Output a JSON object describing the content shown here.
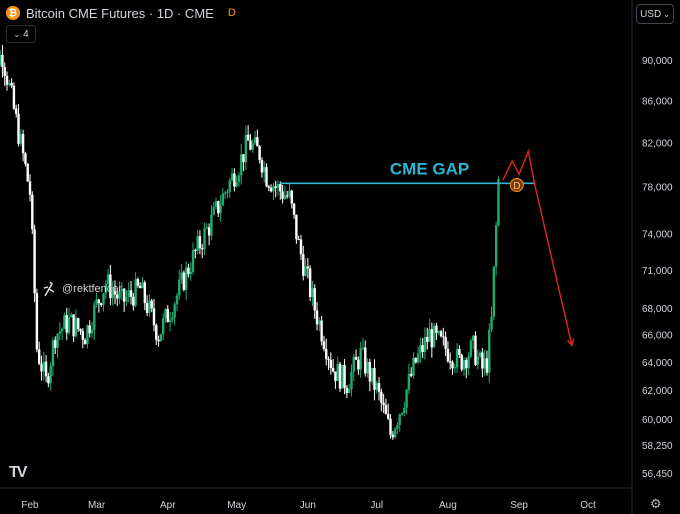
{
  "header": {
    "title": "Bitcoin CME Futures · 1D · CME",
    "coin_glyph": "₿",
    "badge": "D",
    "indicator_count": "4",
    "currency": "USD"
  },
  "watermark": "@rektfencer",
  "annotation": {
    "label": "CME GAP",
    "marker": "D",
    "color": "#2bb6d3"
  },
  "colors": {
    "up": "#22ab6e",
    "down": "#ffffff",
    "projection": "#e0271c",
    "background": "#000000"
  },
  "chart_data": {
    "type": "candlestick",
    "y_ticks": [
      90000,
      86000,
      82000,
      78000,
      74000,
      71000,
      68000,
      66000,
      64000,
      62000,
      60000,
      58250,
      56450
    ],
    "y_tick_labels": [
      "90,000",
      "86,000",
      "82,000",
      "78,000",
      "74,000",
      "71,000",
      "68,000",
      "66,000",
      "64,000",
      "62,000",
      "60,000",
      "58,250",
      "56,450"
    ],
    "x_tick_labels": [
      "Feb",
      "Mar",
      "Apr",
      "May",
      "Jun",
      "Jul",
      "Aug",
      "Sep",
      "Oct"
    ],
    "x_tick_dates": [
      "2024-02-01",
      "2024-03-01",
      "2024-04-01",
      "2024-05-01",
      "2024-06-01",
      "2024-07-01",
      "2024-08-01",
      "2024-09-01",
      "2024-10-01"
    ],
    "y_scale": "log",
    "series_start": "2024-01-13",
    "series_end": "2024-08-23",
    "close_anchors": [
      [
        "2024-01-13",
        89500
      ],
      [
        "2024-01-20",
        90500
      ],
      [
        "2024-01-26",
        84000
      ],
      [
        "2024-02-01",
        77500
      ],
      [
        "2024-02-04",
        65000
      ],
      [
        "2024-02-08",
        62500
      ],
      [
        "2024-02-12",
        66000
      ],
      [
        "2024-02-18",
        67000
      ],
      [
        "2024-02-25",
        66000
      ],
      [
        "2024-03-05",
        70000
      ],
      [
        "2024-03-12",
        68500
      ],
      [
        "2024-03-20",
        69500
      ],
      [
        "2024-03-28",
        66000
      ],
      [
        "2024-04-05",
        69000
      ],
      [
        "2024-04-12",
        72000
      ],
      [
        "2024-04-20",
        75000
      ],
      [
        "2024-04-27",
        78000
      ],
      [
        "2024-05-02",
        80000
      ],
      [
        "2024-05-06",
        82000
      ],
      [
        "2024-05-11",
        81000
      ],
      [
        "2024-05-14",
        79000
      ],
      [
        "2024-05-18",
        78000
      ],
      [
        "2024-05-24",
        77000
      ],
      [
        "2024-05-28",
        73000
      ],
      [
        "2024-06-04",
        68000
      ],
      [
        "2024-06-12",
        63500
      ],
      [
        "2024-06-18",
        62500
      ],
      [
        "2024-06-24",
        64500
      ],
      [
        "2024-07-01",
        62000
      ],
      [
        "2024-07-07",
        59000
      ],
      [
        "2024-07-12",
        61000
      ],
      [
        "2024-07-18",
        64000
      ],
      [
        "2024-07-24",
        66000
      ],
      [
        "2024-07-31",
        65000
      ],
      [
        "2024-08-06",
        64000
      ],
      [
        "2024-08-12",
        65000
      ],
      [
        "2024-08-16",
        63500
      ],
      [
        "2024-08-18",
        64000
      ],
      [
        "2024-08-20",
        67000
      ],
      [
        "2024-08-22",
        74500
      ],
      [
        "2024-08-23",
        78500
      ]
    ],
    "gap_level": 78300,
    "gap_start": "2024-05-20",
    "gap_end": "2024-09-08",
    "marker_point": [
      "2024-08-31",
      78150
    ],
    "projection": [
      [
        "2024-08-25",
        78600
      ],
      [
        "2024-08-29",
        80300
      ],
      [
        "2024-09-01",
        79100
      ],
      [
        "2024-09-05",
        81200
      ],
      [
        "2024-09-08",
        78000
      ],
      [
        "2024-09-24",
        65200
      ]
    ]
  }
}
